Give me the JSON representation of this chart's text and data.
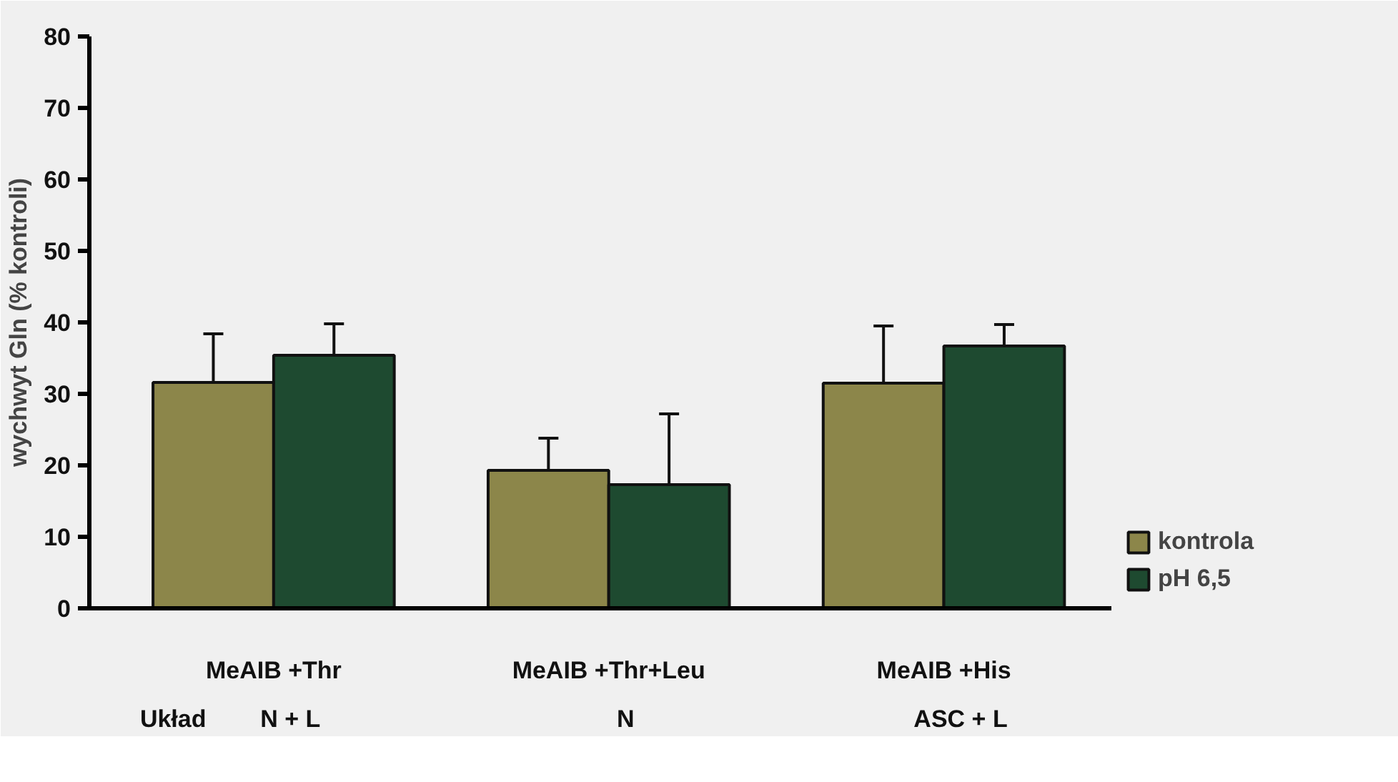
{
  "chart_data": {
    "type": "bar",
    "ylabel": "wychwyt Gln (% kontroli)",
    "categories": [
      "MeAIB +Thr",
      "MeAIB +Thr+Leu",
      "MeAIB +His"
    ],
    "series": [
      {
        "name": "kontrola",
        "color": "#8c864a",
        "values": [
          31.6,
          19.3,
          31.5
        ],
        "errors": [
          [
            31.6,
            38.4
          ],
          [
            19.3,
            23.8
          ],
          [
            31.5,
            39.5
          ]
        ]
      },
      {
        "name": "pH 6,5",
        "color": "#1e4a30",
        "values": [
          35.4,
          17.3,
          36.7
        ],
        "errors": [
          [
            35.4,
            39.8
          ],
          [
            17.3,
            27.2
          ],
          [
            36.7,
            39.7
          ]
        ]
      }
    ],
    "ylim": [
      0,
      80
    ],
    "yticks": [
      0,
      10,
      20,
      30,
      40,
      50,
      60,
      70,
      80
    ],
    "legend": "bottom right",
    "annotations": [
      "Układ",
      "N + L",
      "N",
      "ASC + L"
    ]
  }
}
